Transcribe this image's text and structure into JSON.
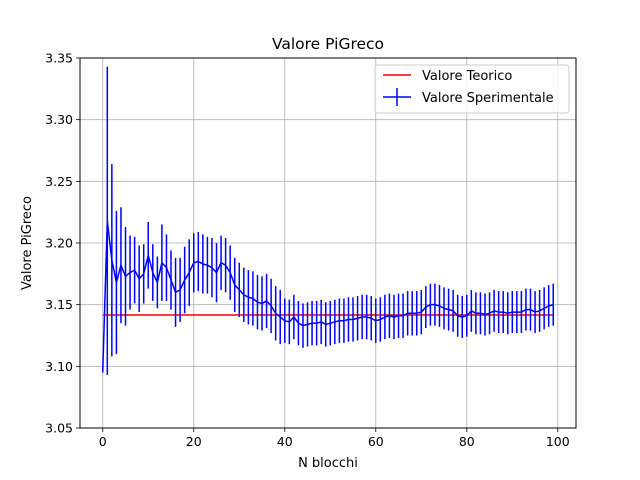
{
  "chart_data": {
    "type": "line",
    "title": "Valore PiGreco",
    "xlabel": "N blocchi",
    "ylabel": "Valore PiGreco",
    "xlim": [
      -5,
      104
    ],
    "ylim": [
      3.05,
      3.35
    ],
    "xticks": [
      "0",
      "20",
      "40",
      "60",
      "80",
      "100"
    ],
    "yticks": [
      "3.05",
      "3.10",
      "3.15",
      "3.20",
      "3.25",
      "3.30",
      "3.35"
    ],
    "grid": true,
    "legend_position": "upper-right",
    "series": [
      {
        "name": "Valore Teorico",
        "color": "#ff0000",
        "x": [
          0,
          99
        ],
        "y": [
          3.1416,
          3.1416
        ]
      },
      {
        "name": "Valore Sperimentale",
        "color": "#0000ff",
        "x": [
          0,
          1,
          2,
          3,
          4,
          5,
          6,
          7,
          8,
          9,
          10,
          11,
          12,
          13,
          14,
          15,
          16,
          17,
          18,
          19,
          20,
          21,
          22,
          23,
          24,
          25,
          26,
          27,
          28,
          29,
          30,
          31,
          32,
          33,
          34,
          35,
          36,
          37,
          38,
          39,
          40,
          41,
          42,
          43,
          44,
          45,
          46,
          47,
          48,
          49,
          50,
          51,
          52,
          53,
          54,
          55,
          56,
          57,
          58,
          59,
          60,
          61,
          62,
          63,
          64,
          65,
          66,
          67,
          68,
          69,
          70,
          71,
          72,
          73,
          74,
          75,
          76,
          77,
          78,
          79,
          80,
          81,
          82,
          83,
          84,
          85,
          86,
          87,
          88,
          89,
          90,
          91,
          92,
          93,
          94,
          95,
          96,
          97,
          98,
          99
        ],
        "y": [
          3.096,
          3.218,
          3.186,
          3.168,
          3.182,
          3.173,
          3.176,
          3.178,
          3.171,
          3.175,
          3.19,
          3.176,
          3.168,
          3.184,
          3.18,
          3.17,
          3.16,
          3.162,
          3.17,
          3.176,
          3.184,
          3.185,
          3.183,
          3.182,
          3.18,
          3.176,
          3.184,
          3.182,
          3.176,
          3.166,
          3.162,
          3.158,
          3.156,
          3.155,
          3.152,
          3.151,
          3.153,
          3.149,
          3.143,
          3.14,
          3.137,
          3.136,
          3.14,
          3.135,
          3.133,
          3.134,
          3.135,
          3.135,
          3.136,
          3.134,
          3.135,
          3.136,
          3.137,
          3.137,
          3.138,
          3.138,
          3.139,
          3.14,
          3.14,
          3.139,
          3.137,
          3.138,
          3.14,
          3.141,
          3.14,
          3.141,
          3.141,
          3.143,
          3.143,
          3.143,
          3.144,
          3.148,
          3.15,
          3.15,
          3.149,
          3.147,
          3.146,
          3.145,
          3.141,
          3.14,
          3.141,
          3.145,
          3.143,
          3.143,
          3.142,
          3.143,
          3.145,
          3.144,
          3.144,
          3.143,
          3.144,
          3.144,
          3.144,
          3.146,
          3.146,
          3.144,
          3.145,
          3.147,
          3.149,
          3.15
        ],
        "yerr": [
          0.001,
          0.125,
          0.078,
          0.058,
          0.047,
          0.04,
          0.03,
          0.027,
          0.027,
          0.024,
          0.027,
          0.023,
          0.021,
          0.031,
          0.027,
          0.024,
          0.028,
          0.026,
          0.027,
          0.027,
          0.024,
          0.024,
          0.024,
          0.023,
          0.024,
          0.024,
          0.022,
          0.022,
          0.022,
          0.022,
          0.022,
          0.022,
          0.022,
          0.022,
          0.022,
          0.022,
          0.022,
          0.022,
          0.022,
          0.022,
          0.018,
          0.018,
          0.018,
          0.018,
          0.018,
          0.018,
          0.018,
          0.018,
          0.018,
          0.018,
          0.018,
          0.018,
          0.018,
          0.018,
          0.018,
          0.018,
          0.018,
          0.018,
          0.018,
          0.018,
          0.018,
          0.018,
          0.018,
          0.018,
          0.018,
          0.018,
          0.018,
          0.018,
          0.018,
          0.018,
          0.018,
          0.017,
          0.017,
          0.017,
          0.017,
          0.017,
          0.017,
          0.017,
          0.017,
          0.017,
          0.017,
          0.017,
          0.017,
          0.017,
          0.017,
          0.017,
          0.017,
          0.017,
          0.017,
          0.017,
          0.017,
          0.017,
          0.017,
          0.017,
          0.017,
          0.017,
          0.017,
          0.017,
          0.017,
          0.017
        ]
      }
    ]
  }
}
